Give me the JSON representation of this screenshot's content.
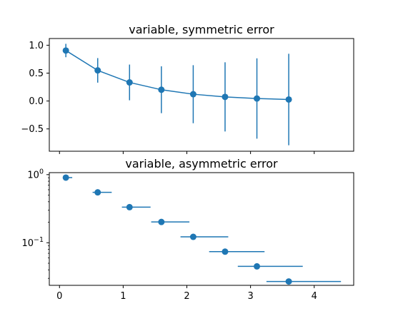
{
  "chart_data": [
    {
      "type": "scatter",
      "title": "variable, symmetric error",
      "xlabel": "",
      "ylabel": "",
      "xlim": [
        -0.16,
        4.62
      ],
      "ylim": [
        -0.9,
        1.12
      ],
      "yscale": "linear",
      "grid": false,
      "connect_points": true,
      "x": [
        0.1,
        0.6,
        1.1,
        1.6,
        2.1,
        2.6,
        3.1,
        3.6
      ],
      "y": [
        0.905,
        0.549,
        0.333,
        0.202,
        0.122,
        0.074,
        0.045,
        0.027
      ],
      "yerr": [
        0.12,
        0.22,
        0.32,
        0.42,
        0.52,
        0.62,
        0.72,
        0.82
      ],
      "color": "#1f77b4",
      "yticks": [
        {
          "value": 1.0,
          "label": "1.0"
        },
        {
          "value": 0.5,
          "label": "0.5"
        },
        {
          "value": 0.0,
          "label": "0.0"
        },
        {
          "value": -0.5,
          "label": "−0.5"
        }
      ],
      "xticks": [
        {
          "value": 0,
          "label": ""
        },
        {
          "value": 1,
          "label": ""
        },
        {
          "value": 2,
          "label": ""
        },
        {
          "value": 3,
          "label": ""
        },
        {
          "value": 4,
          "label": ""
        }
      ]
    },
    {
      "type": "scatter",
      "title": "variable, asymmetric error",
      "xlabel": "",
      "ylabel": "",
      "xlim": [
        -0.16,
        4.62
      ],
      "ylim": [
        0.0237,
        1.07
      ],
      "yscale": "log",
      "grid": false,
      "connect_points": false,
      "x": [
        0.1,
        0.6,
        1.1,
        1.6,
        2.1,
        2.6,
        3.1,
        3.6
      ],
      "y": [
        0.905,
        0.549,
        0.333,
        0.202,
        0.122,
        0.074,
        0.045,
        0.027
      ],
      "xerr_lower": [
        0.02,
        0.08,
        0.12,
        0.16,
        0.2,
        0.25,
        0.3,
        0.35
      ],
      "xerr_upper": [
        0.1,
        0.22,
        0.33,
        0.44,
        0.55,
        0.62,
        0.72,
        0.82
      ],
      "color": "#1f77b4",
      "yticks": [
        {
          "value": 1.0,
          "label_base": "10",
          "label_exp": "0"
        },
        {
          "value": 0.1,
          "label_base": "10",
          "label_exp": "−1"
        }
      ],
      "xticks": [
        {
          "value": 0,
          "label": "0"
        },
        {
          "value": 1,
          "label": "1"
        },
        {
          "value": 2,
          "label": "2"
        },
        {
          "value": 3,
          "label": "3"
        },
        {
          "value": 4,
          "label": "4"
        }
      ]
    }
  ]
}
